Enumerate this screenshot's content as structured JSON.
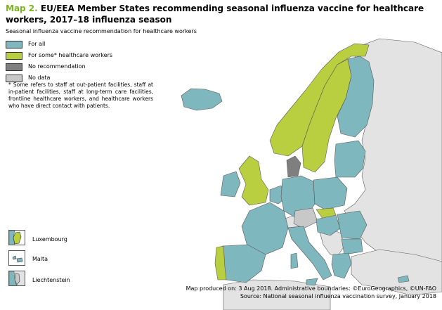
{
  "title": {
    "prefix": "Map 2.",
    "text": "EU/EEA Member States recommending seasonal influenza vaccine for healthcare workers, 2017–18 influenza season"
  },
  "legend": {
    "title": "Seasonal influenza vaccine recommendation for healthcare workers",
    "items": [
      {
        "label": "For all",
        "color": "#7fb7be"
      },
      {
        "label": "For some* healthcare workers",
        "color": "#b9cf3f"
      },
      {
        "label": "No recommendation",
        "color": "#7f7f7f"
      },
      {
        "label": "No data",
        "color": "#c8c8c8"
      }
    ]
  },
  "footnote": "* Some refers to staff at out-patient facilities, staff at in-patient facilities, staff at long-term care facilities, frontline healthcare workers, and healthcare workers who have direct contact with patients.",
  "insets": [
    {
      "label": "Luxembourg",
      "category": "For some* healthcare workers"
    },
    {
      "label": "Malta",
      "category": "For all"
    },
    {
      "label": "Liechtenstein",
      "category": "No data"
    }
  ],
  "colors": {
    "for_all": "#7fb7be",
    "for_some": "#b9cf3f",
    "no_recommendation": "#7f7f7f",
    "no_data": "#c8c8c8",
    "non_eu": "#e3e3e3",
    "sea": "#ffffff",
    "border": "#5a5a5a"
  },
  "credits": {
    "line1": "Map produced on: 3 Aug 2018. Administrative boundaries: ©EuroGeographics, ©UN-FAO",
    "line2": "Source: National seasonal influenza vaccination survey, January 2018"
  }
}
